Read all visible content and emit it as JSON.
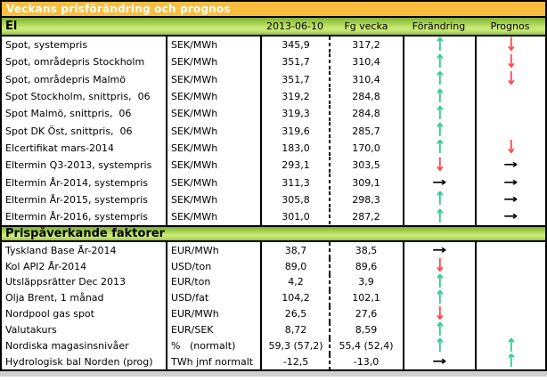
{
  "title": "Veckans prisförändring och prognos",
  "columns": {
    "date": "2013-06-10",
    "prev": "Fg vecka",
    "change": "Förändring",
    "forecast": "Prognos"
  },
  "sections": [
    {
      "name": "El",
      "rows": [
        {
          "label": "Spot, systempris",
          "unit": "SEK/MWh",
          "current": "345,9",
          "previous": "317,2",
          "change": "up",
          "forecast": "down"
        },
        {
          "label": "Spot, områdepris Stockholm",
          "unit": "SEK/MWh",
          "current": "351,7",
          "previous": "310,4",
          "change": "up",
          "forecast": "down"
        },
        {
          "label": "Spot, områdepris Malmö",
          "unit": "SEK/MWh",
          "current": "351,7",
          "previous": "310,4",
          "change": "up",
          "forecast": "down"
        },
        {
          "label": "Spot Stockholm, snittpris,  06",
          "unit": "SEK/MWh",
          "current": "319,2",
          "previous": "284,8",
          "change": "up",
          "forecast": ""
        },
        {
          "label": "Spot Malmö, snittpris,  06",
          "unit": "SEK/MWh",
          "current": "319,3",
          "previous": "284,8",
          "change": "up",
          "forecast": ""
        },
        {
          "label": "Spot DK Öst, snittpris,  06",
          "unit": "SEK/MWh",
          "current": "319,6",
          "previous": "285,7",
          "change": "up",
          "forecast": ""
        },
        {
          "label": "Elcertifikat mars-2014",
          "unit": "SEK/MWh",
          "current": "183,0",
          "previous": "170,0",
          "change": "up",
          "forecast": "down"
        },
        {
          "label": "Eltermin Q3-2013, systempris",
          "unit": "SEK/MWh",
          "current": "293,1",
          "previous": "303,5",
          "change": "down",
          "forecast": "right"
        },
        {
          "label": "Eltermin År-2014, systempris",
          "unit": "SEK/MWh",
          "current": "311,3",
          "previous": "309,1",
          "change": "right",
          "forecast": "right"
        },
        {
          "label": "Eltermin År-2015, systempris",
          "unit": "SEK/MWh",
          "current": "305,8",
          "previous": "298,3",
          "change": "up",
          "forecast": "right"
        },
        {
          "label": "Eltermin År-2016, systempris",
          "unit": "SEK/MWh",
          "current": "301,0",
          "previous": "287,2",
          "change": "up",
          "forecast": "right"
        }
      ]
    },
    {
      "name": "Prispåverkande faktorer",
      "rows": [
        {
          "label": "Tyskland Base År-2014",
          "unit": "EUR/MWh",
          "current": "38,7",
          "previous": "38,5",
          "change": "right",
          "forecast": ""
        },
        {
          "label": "Kol API2 År-2014",
          "unit": "USD/ton",
          "current": "89,0",
          "previous": "89,6",
          "change": "down",
          "forecast": ""
        },
        {
          "label": "Utsläppsrätter Dec 2013",
          "unit": "EUR/ton",
          "current": "4,2",
          "previous": "3,9",
          "change": "up",
          "forecast": ""
        },
        {
          "label": "Olja Brent, 1 månad",
          "unit": "USD/fat",
          "current": "104,2",
          "previous": "102,1",
          "change": "up",
          "forecast": ""
        },
        {
          "label": "Nordpool gas spot",
          "unit": "EUR/MWh",
          "current": "26,5",
          "previous": "27,6",
          "change": "down",
          "forecast": ""
        },
        {
          "label": "Valutakurs",
          "unit": "EUR/SEK",
          "current": "8,72",
          "previous": "8,59",
          "change": "up",
          "forecast": ""
        },
        {
          "label": "Nordiska magasinsnivåer",
          "unit": "%   (normalt)",
          "current": "59,3 (57,2)",
          "previous": "55,4 (52,4)",
          "change": "up",
          "forecast": "up"
        },
        {
          "label": "Hydrologisk bal Norden (prog)",
          "unit": "TWh jmf normalt",
          "current": "-12,5",
          "previous": "-13,0",
          "change": "right",
          "forecast": "up"
        }
      ]
    }
  ],
  "arrow_glyphs": {
    "up": "↑",
    "down": "↓",
    "right": "→"
  },
  "colors": {
    "title_bar": "#f9bd3f",
    "band_green_light": "#cdea7d",
    "band_green_dark": "#7fb237",
    "arrow_up": "#2fcf8e",
    "arrow_down": "#ff4a4a",
    "arrow_right": "#000000"
  }
}
